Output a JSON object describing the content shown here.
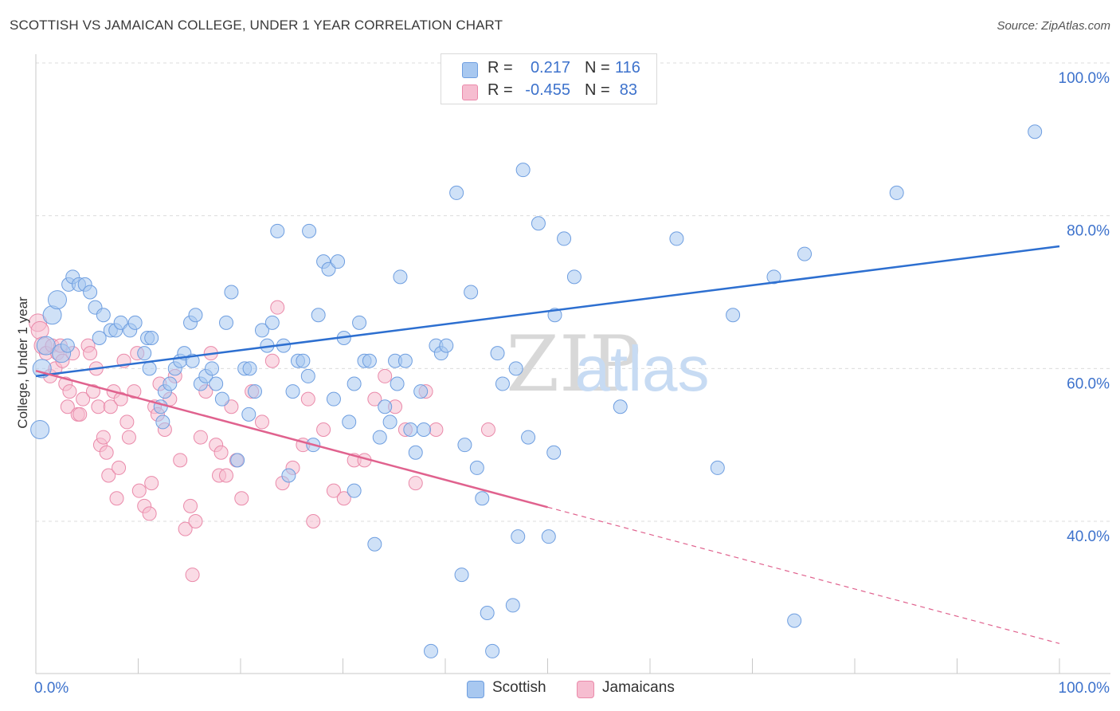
{
  "title": "SCOTTISH VS JAMAICAN COLLEGE, UNDER 1 YEAR CORRELATION CHART",
  "source": "Source: ZipAtlas.com",
  "legend": {
    "scottish": {
      "r_label": "R =",
      "r_value": "0.217",
      "n_label": "N =",
      "n_value": "116"
    },
    "jamaican": {
      "r_label": "R =",
      "r_value": "-0.455",
      "n_label": "N =",
      "n_value": "83"
    }
  },
  "bottom_legend": {
    "scottish": "Scottish",
    "jamaican": "Jamaicans"
  },
  "colors": {
    "scottish_fill": "#a8c8f0",
    "scottish_stroke": "#6e9ee0",
    "scottish_line": "#2d6fd0",
    "jamaican_fill": "#f6bdd0",
    "jamaican_stroke": "#ea8aaa",
    "jamaican_line": "#e0628e",
    "axis_text": "#3d72cc",
    "grid": "#dcdcdc"
  },
  "chart_data": {
    "type": "scatter",
    "xlabel": "",
    "ylabel": "College, Under 1 year",
    "x_tick_labels": [
      "0.0%",
      "100.0%"
    ],
    "y_tick_labels": [
      "40.0%",
      "60.0%",
      "80.0%",
      "100.0%"
    ],
    "xlim": [
      0,
      100
    ],
    "ylim": [
      22,
      102
    ],
    "grid": true,
    "watermark": "ZIPatlas",
    "series": [
      {
        "name": "Scottish",
        "trend": {
          "x": [
            0,
            100
          ],
          "y": [
            59,
            76
          ]
        },
        "points": [
          [
            0.4,
            52
          ],
          [
            0.6,
            60
          ],
          [
            1,
            63
          ],
          [
            1.6,
            67
          ],
          [
            2.1,
            69
          ],
          [
            3.2,
            71
          ],
          [
            3.6,
            72
          ],
          [
            4.2,
            71
          ],
          [
            4.8,
            71
          ],
          [
            5.3,
            70
          ],
          [
            5.8,
            68
          ],
          [
            6.6,
            67
          ],
          [
            7.3,
            65
          ],
          [
            7.8,
            65
          ],
          [
            8.3,
            66
          ],
          [
            9.2,
            65
          ],
          [
            10.6,
            62
          ],
          [
            10.9,
            64
          ],
          [
            11.1,
            60
          ],
          [
            11.3,
            64
          ],
          [
            12.2,
            55
          ],
          [
            12.6,
            57
          ],
          [
            13.1,
            58
          ],
          [
            13.6,
            60
          ],
          [
            14.1,
            61
          ],
          [
            14.5,
            62
          ],
          [
            15.1,
            66
          ],
          [
            15.3,
            61
          ],
          [
            15.6,
            67
          ],
          [
            16.1,
            58
          ],
          [
            16.6,
            59
          ],
          [
            17.2,
            60
          ],
          [
            17.6,
            58
          ],
          [
            18.2,
            56
          ],
          [
            18.6,
            66
          ],
          [
            19.1,
            70
          ],
          [
            19.7,
            48
          ],
          [
            20.4,
            60
          ],
          [
            20.9,
            60
          ],
          [
            21.4,
            57
          ],
          [
            22.1,
            65
          ],
          [
            22.6,
            63
          ],
          [
            23.1,
            66
          ],
          [
            23.6,
            78
          ],
          [
            24.2,
            63
          ],
          [
            24.7,
            46
          ],
          [
            25.1,
            57
          ],
          [
            25.6,
            61
          ],
          [
            26.1,
            61
          ],
          [
            26.7,
            78
          ],
          [
            27.1,
            50
          ],
          [
            27.6,
            67
          ],
          [
            28.1,
            74
          ],
          [
            28.6,
            73
          ],
          [
            29.1,
            56
          ],
          [
            29.5,
            74
          ],
          [
            30.1,
            64
          ],
          [
            30.6,
            53
          ],
          [
            31.1,
            58
          ],
          [
            31.6,
            66
          ],
          [
            32.1,
            61
          ],
          [
            32.6,
            61
          ],
          [
            33.1,
            37
          ],
          [
            33.6,
            51
          ],
          [
            34.1,
            55
          ],
          [
            34.6,
            53
          ],
          [
            35.1,
            61
          ],
          [
            35.6,
            72
          ],
          [
            36.1,
            61
          ],
          [
            36.6,
            52
          ],
          [
            37.1,
            49
          ],
          [
            37.6,
            57
          ],
          [
            37.9,
            52
          ],
          [
            38.6,
            23
          ],
          [
            39.1,
            63
          ],
          [
            39.6,
            62
          ],
          [
            40.1,
            63
          ],
          [
            41.1,
            83
          ],
          [
            41.6,
            33
          ],
          [
            41.9,
            50
          ],
          [
            42.5,
            70
          ],
          [
            43.1,
            47
          ],
          [
            43.6,
            43
          ],
          [
            44.1,
            28
          ],
          [
            44.6,
            23
          ],
          [
            45.1,
            62
          ],
          [
            45.6,
            58
          ],
          [
            46.6,
            29
          ],
          [
            47.1,
            38
          ],
          [
            47.6,
            86
          ],
          [
            48.1,
            51
          ],
          [
            49.1,
            79
          ],
          [
            50.1,
            38
          ],
          [
            50.6,
            49
          ],
          [
            51.6,
            77
          ],
          [
            52.6,
            72
          ],
          [
            57.1,
            55
          ],
          [
            62.6,
            77
          ],
          [
            66.6,
            47
          ],
          [
            68.1,
            67
          ],
          [
            72.1,
            72
          ],
          [
            74.1,
            27
          ],
          [
            75.1,
            75
          ],
          [
            84.1,
            83
          ],
          [
            97.6,
            91
          ],
          [
            2.5,
            62
          ],
          [
            3.1,
            63
          ],
          [
            6.2,
            64
          ],
          [
            9.7,
            66
          ],
          [
            12.4,
            53
          ],
          [
            20.8,
            54
          ],
          [
            26.6,
            59
          ],
          [
            31.1,
            44
          ],
          [
            35.3,
            58
          ],
          [
            46.9,
            60
          ],
          [
            50.7,
            67
          ]
        ]
      },
      {
        "name": "Jamaicans",
        "trend": {
          "x": [
            0,
            100
          ],
          "y": [
            59.7,
            24
          ]
        },
        "trend_solid_until_x": 50,
        "points": [
          [
            0.2,
            66
          ],
          [
            0.4,
            65
          ],
          [
            0.7,
            63
          ],
          [
            1,
            62
          ],
          [
            1.4,
            59
          ],
          [
            1.6,
            63
          ],
          [
            1.9,
            60
          ],
          [
            2.1,
            62
          ],
          [
            2.4,
            63
          ],
          [
            2.6,
            61
          ],
          [
            2.9,
            58
          ],
          [
            3.1,
            55
          ],
          [
            3.3,
            57
          ],
          [
            3.6,
            62
          ],
          [
            4.1,
            54
          ],
          [
            4.3,
            54
          ],
          [
            4.6,
            56
          ],
          [
            5.1,
            63
          ],
          [
            5.3,
            62
          ],
          [
            5.6,
            57
          ],
          [
            5.9,
            60
          ],
          [
            6.1,
            55
          ],
          [
            6.3,
            50
          ],
          [
            6.6,
            51
          ],
          [
            6.9,
            49
          ],
          [
            7.1,
            46
          ],
          [
            7.3,
            55
          ],
          [
            7.6,
            57
          ],
          [
            7.9,
            43
          ],
          [
            8.1,
            47
          ],
          [
            8.3,
            56
          ],
          [
            8.6,
            61
          ],
          [
            8.9,
            53
          ],
          [
            9.1,
            51
          ],
          [
            9.6,
            57
          ],
          [
            9.9,
            62
          ],
          [
            10.1,
            44
          ],
          [
            10.6,
            42
          ],
          [
            11.1,
            41
          ],
          [
            11.3,
            45
          ],
          [
            11.6,
            55
          ],
          [
            11.9,
            54
          ],
          [
            12.1,
            58
          ],
          [
            12.6,
            52
          ],
          [
            13.1,
            56
          ],
          [
            13.6,
            59
          ],
          [
            14.1,
            48
          ],
          [
            14.6,
            39
          ],
          [
            15.1,
            42
          ],
          [
            15.3,
            33
          ],
          [
            15.6,
            40
          ],
          [
            16.1,
            51
          ],
          [
            16.6,
            57
          ],
          [
            17.1,
            62
          ],
          [
            17.6,
            50
          ],
          [
            17.9,
            46
          ],
          [
            18.1,
            49
          ],
          [
            18.6,
            46
          ],
          [
            19.1,
            55
          ],
          [
            19.6,
            48
          ],
          [
            20.1,
            43
          ],
          [
            21.1,
            57
          ],
          [
            22.1,
            53
          ],
          [
            23.1,
            61
          ],
          [
            23.6,
            68
          ],
          [
            24.1,
            45
          ],
          [
            25.1,
            47
          ],
          [
            26.1,
            50
          ],
          [
            26.6,
            56
          ],
          [
            27.1,
            40
          ],
          [
            28.1,
            52
          ],
          [
            29.1,
            44
          ],
          [
            30.1,
            43
          ],
          [
            31.1,
            48
          ],
          [
            32.1,
            48
          ],
          [
            33.1,
            56
          ],
          [
            34.1,
            59
          ],
          [
            35.1,
            55
          ],
          [
            36.1,
            52
          ],
          [
            37.1,
            45
          ],
          [
            38.1,
            57
          ],
          [
            39.1,
            52
          ],
          [
            44.2,
            52
          ]
        ]
      }
    ]
  }
}
